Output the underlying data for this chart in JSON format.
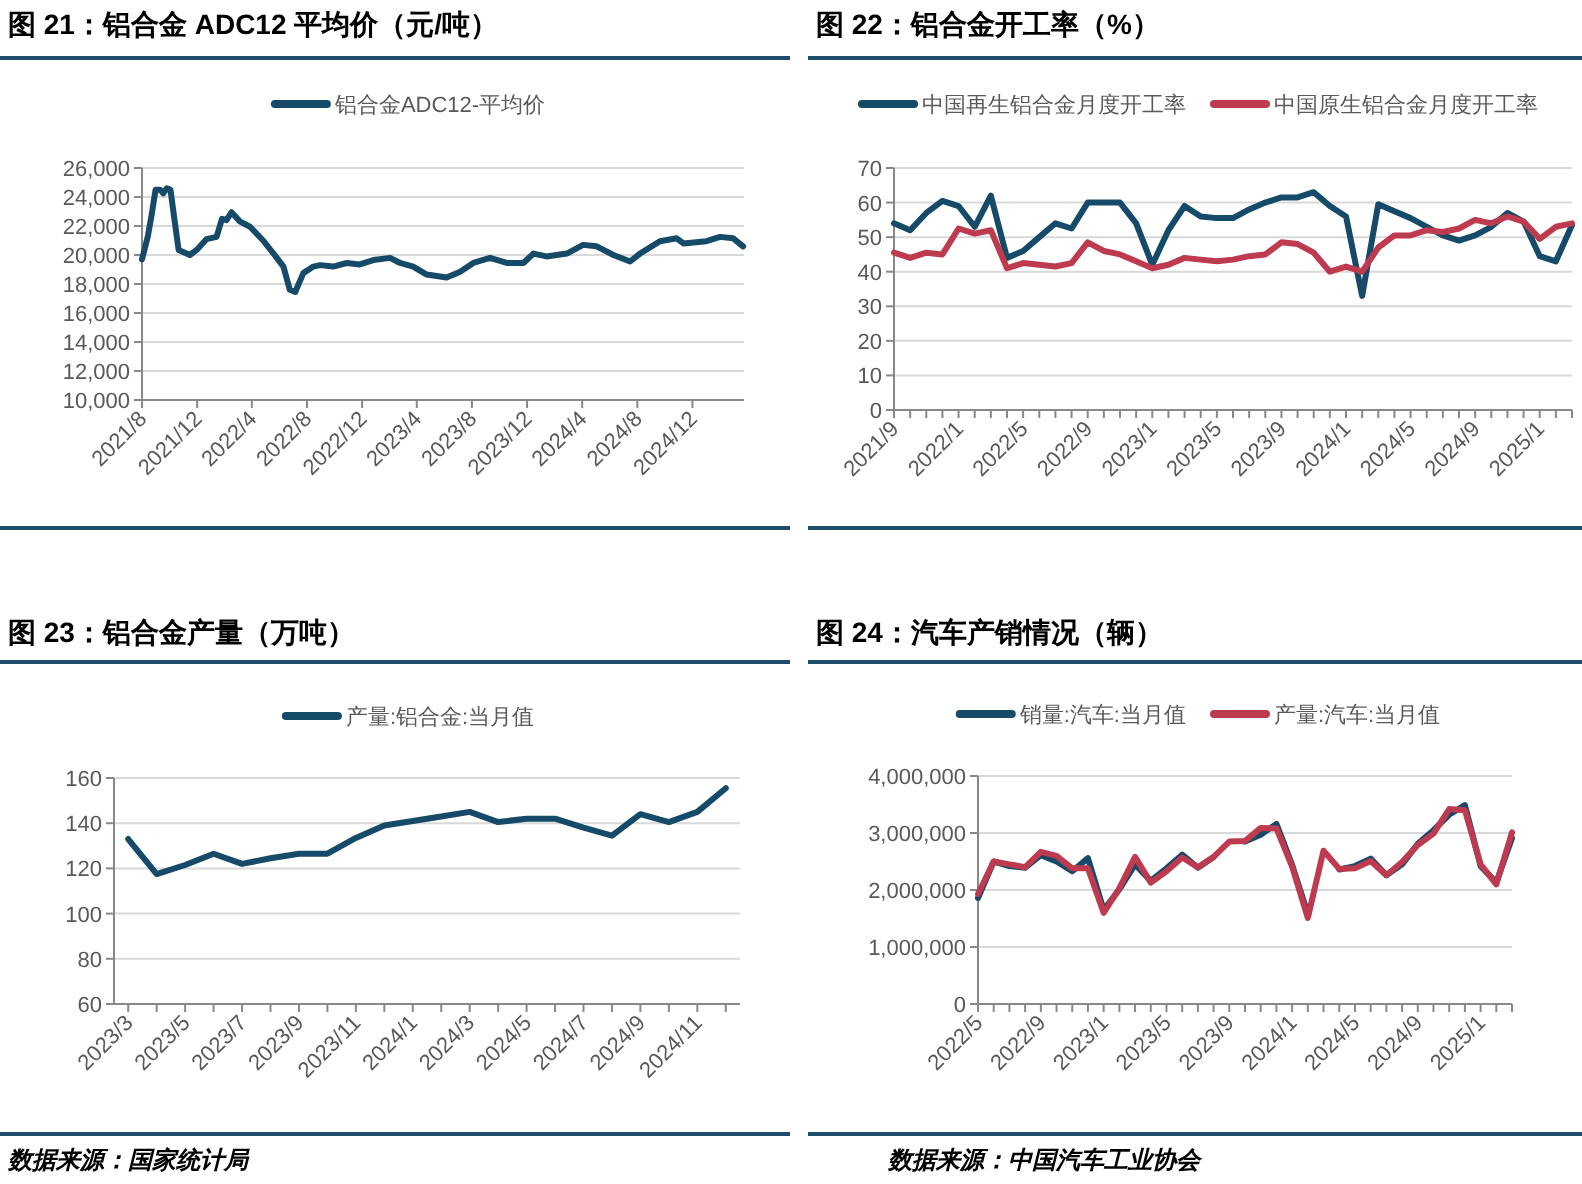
{
  "chart_data": [
    {
      "type": "line",
      "title": "图 21：铝合金 ADC12 平均价（元/吨）",
      "grid": "y",
      "legend": "top",
      "xlim": [
        "2021-08-01",
        "2025-03-25"
      ],
      "xticks": [
        {
          "value": "2021-08-01",
          "label": "2021/8"
        },
        {
          "value": "2021-12-01",
          "label": "2021/12"
        },
        {
          "value": "2022-04-01",
          "label": "2022/4"
        },
        {
          "value": "2022-08-01",
          "label": "2022/8"
        },
        {
          "value": "2022-12-01",
          "label": "2022/12"
        },
        {
          "value": "2023-04-01",
          "label": "2023/4"
        },
        {
          "value": "2023-08-01",
          "label": "2023/8"
        },
        {
          "value": "2023-12-01",
          "label": "2023/12"
        },
        {
          "value": "2024-04-01",
          "label": "2024/4"
        },
        {
          "value": "2024-08-01",
          "label": "2024/8"
        },
        {
          "value": "2024-12-01",
          "label": "2024/12"
        }
      ],
      "ylim": [
        10000,
        26000
      ],
      "yticks": [
        {
          "value": 10000,
          "label": "10,000"
        },
        {
          "value": 12000,
          "label": "12,000"
        },
        {
          "value": 14000,
          "label": "14,000"
        },
        {
          "value": 16000,
          "label": "16,000"
        },
        {
          "value": 18000,
          "label": "18,000"
        },
        {
          "value": 20000,
          "label": "20,000"
        },
        {
          "value": 22000,
          "label": "22,000"
        },
        {
          "value": 24000,
          "label": "24,000"
        },
        {
          "value": 26000,
          "label": "26,000"
        }
      ],
      "x": [
        "2021-08-01",
        "2021-08-14",
        "2021-08-23",
        "2021-08-31",
        "2021-09-10",
        "2021-09-17",
        "2021-09-25",
        "2021-10-03",
        "2021-10-12",
        "2021-10-21",
        "2021-11-15",
        "2021-11-30",
        "2021-12-22",
        "2022-01-13",
        "2022-01-25",
        "2022-02-04",
        "2022-02-15",
        "2022-03-06",
        "2022-03-28",
        "2022-04-26",
        "2022-05-19",
        "2022-06-10",
        "2022-06-24",
        "2022-07-06",
        "2022-07-24",
        "2022-08-15",
        "2022-08-30",
        "2022-09-28",
        "2022-10-28",
        "2022-11-26",
        "2022-12-26",
        "2023-02-01",
        "2023-02-23",
        "2023-03-24",
        "2023-04-23",
        "2023-06-06",
        "2023-07-06",
        "2023-08-04",
        "2023-09-10",
        "2023-10-17",
        "2023-11-23",
        "2023-12-15",
        "2024-01-13",
        "2024-02-27",
        "2024-04-03",
        "2024-05-03",
        "2024-06-09",
        "2024-07-16",
        "2024-08-07",
        "2024-09-20",
        "2024-10-27",
        "2024-11-11",
        "2025-01-01",
        "2025-01-31",
        "2025-03-01",
        "2025-03-23"
      ],
      "series": [
        {
          "name": "铝合金ADC12-平均价",
          "color": "#164a69",
          "values": [
            19700,
            21300,
            22900,
            24500,
            24500,
            24250,
            24600,
            24500,
            22400,
            20350,
            20000,
            20350,
            21100,
            21250,
            22500,
            22400,
            22950,
            22300,
            21950,
            21000,
            20100,
            19200,
            17600,
            17450,
            18750,
            19200,
            19300,
            19200,
            19450,
            19350,
            19650,
            19800,
            19450,
            19200,
            18650,
            18450,
            18850,
            19450,
            19800,
            19450,
            19450,
            20100,
            19900,
            20100,
            20700,
            20600,
            20000,
            19550,
            20100,
            20950,
            21150,
            20800,
            20950,
            21250,
            21150,
            20600
          ]
        }
      ]
    },
    {
      "type": "line",
      "title": "图 22：铝合金开工率（%）",
      "grid": "y",
      "legend": "top",
      "categories": [
        "2021/9",
        null,
        null,
        null,
        "2022/1",
        null,
        null,
        null,
        "2022/5",
        null,
        null,
        null,
        "2022/9",
        null,
        null,
        null,
        "2023/1",
        null,
        null,
        null,
        "2023/5",
        null,
        null,
        null,
        "2023/9",
        null,
        null,
        null,
        "2024/1",
        null,
        null,
        null,
        "2024/5",
        null,
        null,
        null,
        "2024/9",
        null,
        null,
        null,
        "2025/1",
        null,
        null
      ],
      "ylim": [
        0,
        70
      ],
      "yticks": [
        0,
        10,
        20,
        30,
        40,
        50,
        60,
        70
      ],
      "series": [
        {
          "name": "中国再生铝合金月度开工率",
          "color": "#164a69",
          "values": [
            54,
            52,
            57,
            60.5,
            59,
            53,
            62,
            44,
            46,
            50,
            54,
            52.5,
            60,
            60,
            60,
            54,
            42,
            52,
            59,
            56,
            55.5,
            55.5,
            58,
            60,
            61.5,
            61.5,
            63,
            59,
            56,
            33,
            59.5,
            57.5,
            55.5,
            53,
            50.5,
            49,
            50.5,
            53,
            57,
            54.5,
            44.5,
            43,
            53.5
          ]
        },
        {
          "name": "中国原生铝合金月度开工率",
          "color": "#be3a4f",
          "values": [
            45.5,
            44,
            45.5,
            45,
            52.5,
            51,
            52,
            41,
            42.5,
            42,
            41.5,
            42.5,
            48.5,
            46,
            45,
            43,
            41,
            42,
            44,
            43.5,
            43,
            43.5,
            44.5,
            45,
            48.5,
            48,
            45.5,
            40,
            41.5,
            40,
            47,
            50.5,
            50.5,
            52,
            51.5,
            52.5,
            55,
            54,
            56,
            54.5,
            49.5,
            53,
            54
          ]
        }
      ]
    },
    {
      "type": "line",
      "title": "图 23：铝合金产量（万吨）",
      "grid": "y",
      "legend": "top",
      "categories": [
        "2023/3",
        null,
        "2023/5",
        null,
        "2023/7",
        null,
        "2023/9",
        null,
        "2023/11",
        null,
        "2024/1",
        null,
        "2024/3",
        null,
        "2024/5",
        null,
        "2024/7",
        null,
        "2024/9",
        null,
        "2024/11",
        null
      ],
      "ylim": [
        60,
        160
      ],
      "yticks": [
        60,
        80,
        100,
        120,
        140,
        160
      ],
      "annotations": [
        "数据来源：国家统计局"
      ],
      "series": [
        {
          "name": "产量:铝合金:当月值",
          "color": "#164a69",
          "values": [
            133,
            117.5,
            121.5,
            126.5,
            122,
            124.5,
            126.5,
            126.5,
            133.5,
            139,
            141,
            143,
            145,
            140.5,
            142,
            142,
            138,
            134.5,
            144,
            140.5,
            145,
            155.5
          ]
        }
      ]
    },
    {
      "type": "line",
      "title": "图 24：汽车产销情况（辆）",
      "grid": "y",
      "legend": "top",
      "categories": [
        "2022/5",
        null,
        null,
        null,
        "2022/9",
        null,
        null,
        null,
        "2023/1",
        null,
        null,
        null,
        "2023/5",
        null,
        null,
        null,
        "2023/9",
        null,
        null,
        null,
        "2024/1",
        null,
        null,
        null,
        "2024/5",
        null,
        null,
        null,
        "2024/9",
        null,
        null,
        null,
        "2025/1",
        null,
        null
      ],
      "ylim": [
        0,
        4000000
      ],
      "yticks": [
        0,
        {
          "value": 1000000,
          "label": "1,000,000"
        },
        {
          "value": 2000000,
          "label": "2,000,000"
        },
        {
          "value": 3000000,
          "label": "3,000,000"
        },
        {
          "value": 4000000,
          "label": "4,000,000"
        }
      ],
      "annotations": [
        "数据来源：中国汽车工业协会"
      ],
      "series": [
        {
          "name": "销量:汽车:当月值",
          "color": "#164a69",
          "values": [
            1860000,
            2500000,
            2420000,
            2390000,
            2610000,
            2500000,
            2330000,
            2560000,
            1650000,
            2010000,
            2450000,
            2160000,
            2380000,
            2620000,
            2390000,
            2580000,
            null,
            2850000,
            2970000,
            3160000,
            2440000,
            1580000,
            null,
            2360000,
            2420000,
            2550000,
            2260000,
            2450000,
            2810000,
            3050000,
            3320000,
            3490000,
            2420000,
            2130000,
            2910000
          ]
        },
        {
          "name": "产量:汽车:当月值",
          "color": "#be3a4f",
          "values": [
            1930000,
            2500000,
            2450000,
            2400000,
            2670000,
            2600000,
            2380000,
            2380000,
            1600000,
            2030000,
            2580000,
            2130000,
            2330000,
            2570000,
            2400000,
            2580000,
            2850000,
            2860000,
            3090000,
            3080000,
            2410000,
            1510000,
            2690000,
            2370000,
            2380000,
            2510000,
            2260000,
            2490000,
            2790000,
            2990000,
            3420000,
            3400000,
            2450000,
            2100000,
            3010000
          ]
        }
      ]
    }
  ]
}
